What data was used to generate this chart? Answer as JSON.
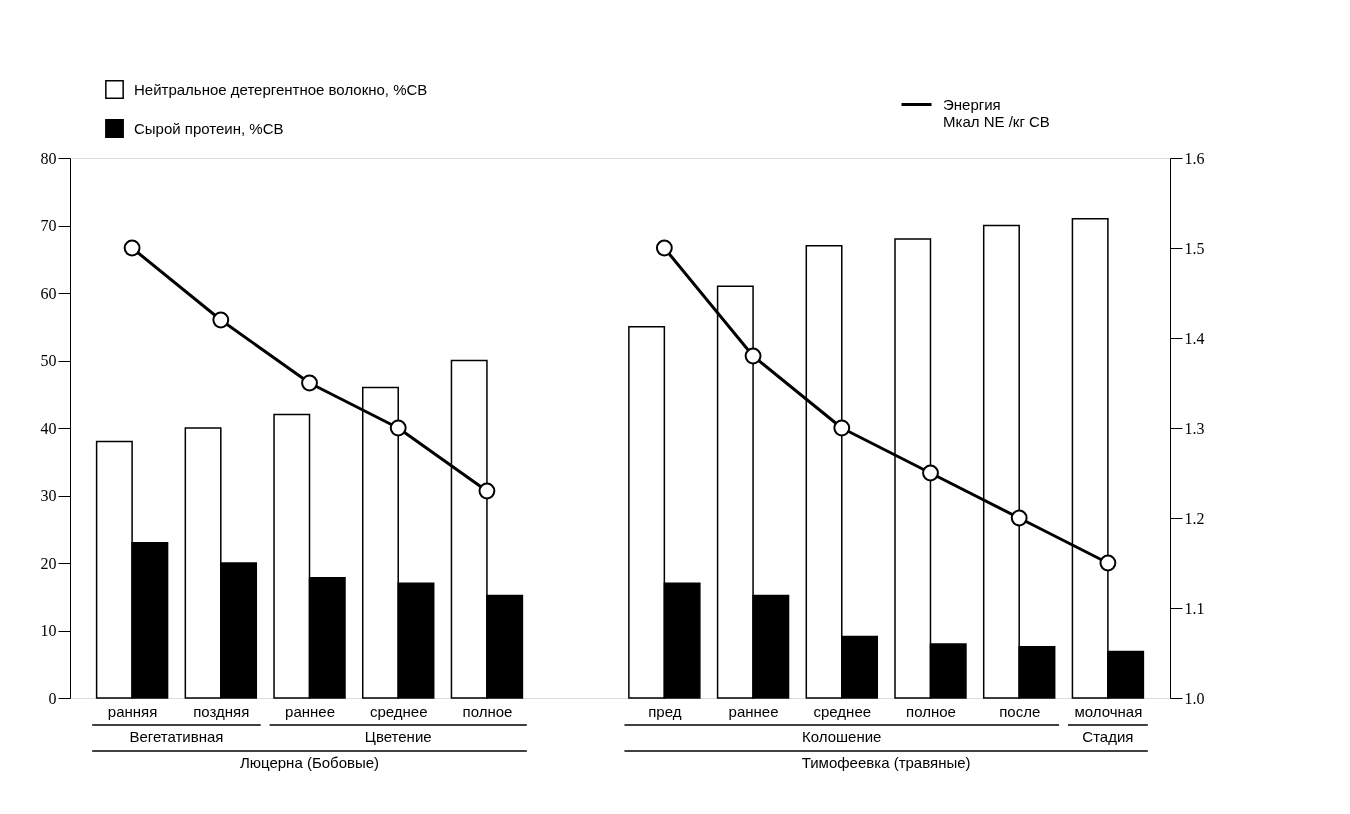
{
  "chart_data": {
    "type": "bar",
    "categories": [
      "ранняя",
      "поздняя",
      "раннее",
      "среднее",
      "полное",
      null,
      "пред",
      "раннее",
      "среднее",
      "полное",
      "после",
      "молочная"
    ],
    "series": [
      {
        "name": "Нейтральное детергентное волокно, %СВ",
        "color": "#ffffff",
        "values": [
          38,
          40,
          42,
          46,
          50,
          null,
          55,
          61,
          67,
          68,
          70,
          71
        ]
      },
      {
        "name": "Сырой протеин, %СВ",
        "color": "#000000",
        "values": [
          23,
          20,
          17.8,
          17,
          15.2,
          null,
          17,
          15.2,
          9.1,
          8,
          7.6,
          6.9
        ]
      },
      {
        "name": "Энергия\nМкал NE /кг СВ",
        "type": "line",
        "axis": "y2",
        "color": "#000000",
        "values": [
          1.5,
          1.42,
          1.35,
          1.3,
          1.23,
          null,
          1.5,
          1.38,
          1.3,
          1.25,
          1.2,
          1.15
        ]
      }
    ],
    "marker": "circle",
    "ylim": [
      0,
      80
    ],
    "yticks": [
      0,
      10,
      20,
      30,
      40,
      50,
      60,
      70,
      80
    ],
    "y2lim": [
      1.0,
      1.6
    ],
    "y2ticks": [
      {
        "value": 1.0,
        "label": "1.0"
      },
      1.1,
      1.2,
      1.3,
      1.4,
      1.5,
      1.6
    ],
    "annotations": [
      "Вегетативная",
      "Цветение",
      "Люцерна (Бобовые)",
      "Колошение",
      "Стадия",
      "Тимофеевка (травяные)"
    ],
    "legend": "top",
    "grid": false
  }
}
